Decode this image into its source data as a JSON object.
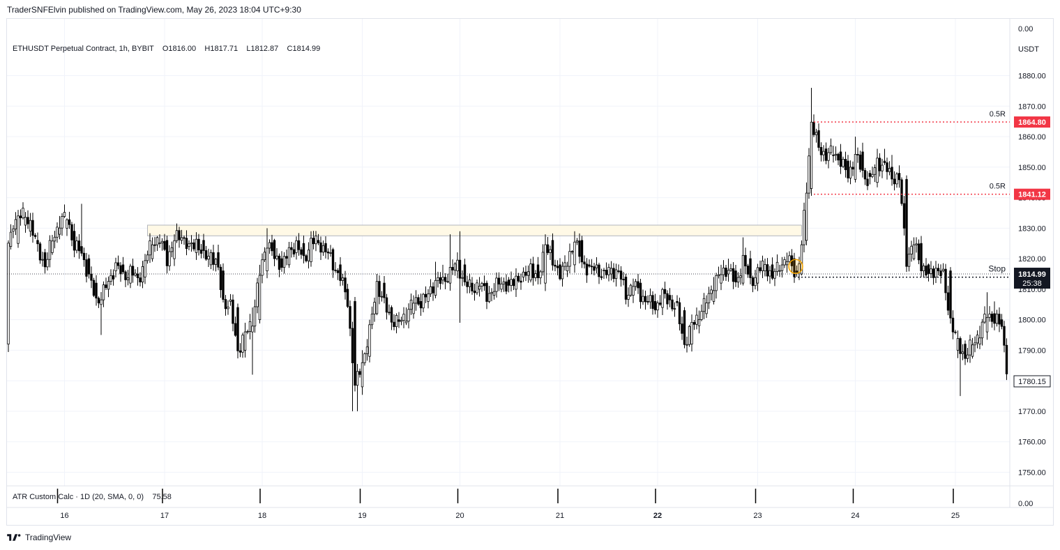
{
  "header": {
    "publish_line": "TraderSNFElvin published on TradingView.com, May 26, 2023 18:04 UTC+9:30"
  },
  "legend": {
    "symbol_line": "ETHUSDT Perpetual Contract, 1h, BYBIT",
    "open": "O1816.00",
    "high": "H1817.71",
    "low": "L1812.87",
    "close": "C1814.99"
  },
  "indicator": {
    "label": "ATR Custom Calc · 1D (20, SMA, 0, 0)",
    "value": "75.58",
    "axis_zero": "0.00",
    "bar_x_indices": [
      20,
      63,
      103,
      144,
      184,
      225,
      265,
      306,
      346,
      387
    ]
  },
  "brand": {
    "name": "TradingView"
  },
  "colors": {
    "up": "#ffffff",
    "down": "#000000",
    "wick": "#000000",
    "target": "#f23645",
    "price_label": "#131722",
    "zone_fill": "#fff9e6",
    "zone_stroke": "#b2b5be",
    "grid": "#f0f3fa",
    "highlight_circle": "#f7a600"
  },
  "chart_data": {
    "type": "candlestick",
    "title": "ETHUSDT Perpetual Contract, 1h, BYBIT",
    "currency": "USDT",
    "ylim": [
      1745,
      1885
    ],
    "y_ticks": [
      1750,
      1760,
      1770,
      1780,
      1790,
      1800,
      1810,
      1820,
      1830,
      1840,
      1850,
      1860,
      1870,
      1880
    ],
    "y_tick_labels": [
      "1750.00",
      "1760.00",
      "1770.00",
      "1780.00",
      "1790.00",
      "1800.00",
      "1810.00",
      "1820.00",
      "1830.00",
      "1840.00",
      "1850.00",
      "1860.00",
      "1870.00",
      "1880.00"
    ],
    "y_axis_top_label": "0.00",
    "x_ticks": [
      {
        "label": "16",
        "index": 23
      },
      {
        "label": "17",
        "index": 64
      },
      {
        "label": "18",
        "index": 104
      },
      {
        "label": "19",
        "index": 145
      },
      {
        "label": "20",
        "index": 185
      },
      {
        "label": "21",
        "index": 226
      },
      {
        "label": "22",
        "index": 266,
        "bold": true
      },
      {
        "label": "23",
        "index": 307
      },
      {
        "label": "24",
        "index": 347
      },
      {
        "label": "25",
        "index": 388
      }
    ],
    "anchors": [
      [
        0,
        1792,
        1824,
        1826
      ],
      [
        1,
        1824,
        1827,
        1826
      ],
      [
        2,
        1829,
        1832,
        1831
      ],
      [
        4,
        1825,
        1834,
        1836
      ],
      [
        7,
        1831,
        1834,
        1832
      ],
      [
        9,
        1829,
        1832,
        1835
      ],
      [
        12,
        1826,
        1823,
        1826
      ],
      [
        15,
        1822,
        1818,
        1820
      ],
      [
        18,
        1822,
        1826,
        1823
      ],
      [
        21,
        1828,
        1832,
        1834
      ],
      [
        24,
        1830,
        1834,
        1832
      ],
      [
        27,
        1829,
        1824,
        1827
      ],
      [
        30,
        1824,
        1822,
        1823
      ],
      [
        33,
        1820,
        1814,
        1816
      ],
      [
        36,
        1812,
        1806,
        1805
      ],
      [
        38,
        1805,
        1808,
        1809
      ],
      [
        41,
        1810,
        1812,
        1812
      ],
      [
        44,
        1816,
        1818,
        1820
      ],
      [
        47,
        1818,
        1814,
        1818
      ],
      [
        50,
        1812,
        1816,
        1818
      ],
      [
        53,
        1815,
        1813,
        1816
      ],
      [
        56,
        1814,
        1819,
        1820
      ],
      [
        59,
        1820,
        1826,
        1827
      ],
      [
        62,
        1825,
        1826,
        1828
      ],
      [
        65,
        1826,
        1820,
        1824
      ],
      [
        68,
        1820,
        1826,
        1828
      ],
      [
        71,
        1826,
        1828,
        1829
      ],
      [
        74,
        1824,
        1823,
        1826
      ],
      [
        77,
        1822,
        1826,
        1827
      ],
      [
        80,
        1826,
        1820,
        1822
      ],
      [
        83,
        1818,
        1822,
        1823
      ],
      [
        86,
        1822,
        1816,
        1818
      ],
      [
        88,
        1816,
        1806,
        1810
      ],
      [
        91,
        1806,
        1804,
        1806
      ],
      [
        94,
        1804,
        1790,
        1796
      ],
      [
        97,
        1790,
        1795,
        1799
      ],
      [
        100,
        1796,
        1800,
        1804
      ],
      [
        103,
        1800,
        1815,
        1818
      ],
      [
        106,
        1816,
        1826,
        1830
      ],
      [
        109,
        1826,
        1820,
        1822
      ],
      [
        112,
        1820,
        1818,
        1820
      ],
      [
        115,
        1818,
        1822,
        1824
      ],
      [
        118,
        1822,
        1825,
        1826
      ],
      [
        121,
        1825,
        1819,
        1822
      ],
      [
        124,
        1819,
        1826,
        1829
      ],
      [
        127,
        1826,
        1825,
        1827
      ],
      [
        130,
        1825,
        1823,
        1826
      ],
      [
        133,
        1823,
        1818,
        1821
      ],
      [
        136,
        1818,
        1814,
        1815
      ],
      [
        139,
        1810,
        1806,
        1808
      ],
      [
        142,
        1806,
        1778,
        1800
      ],
      [
        145,
        1778,
        1786,
        1790
      ],
      [
        148,
        1788,
        1796,
        1800
      ],
      [
        151,
        1802,
        1812,
        1815
      ],
      [
        154,
        1812,
        1805,
        1808
      ],
      [
        157,
        1804,
        1800,
        1802
      ],
      [
        160,
        1800,
        1799,
        1802
      ],
      [
        163,
        1799,
        1802,
        1804
      ],
      [
        166,
        1802,
        1806,
        1808
      ],
      [
        169,
        1806,
        1806,
        1808
      ],
      [
        172,
        1806,
        1808,
        1810
      ],
      [
        175,
        1808,
        1813,
        1819
      ],
      [
        178,
        1813,
        1812,
        1818
      ],
      [
        181,
        1812,
        1816,
        1828
      ],
      [
        184,
        1816,
        1818,
        1822
      ],
      [
        187,
        1818,
        1812,
        1820
      ],
      [
        190,
        1812,
        1810,
        1814
      ],
      [
        193,
        1810,
        1812,
        1814
      ],
      [
        196,
        1812,
        1808,
        1812
      ],
      [
        199,
        1808,
        1810,
        1812
      ],
      [
        202,
        1810,
        1813,
        1814
      ],
      [
        205,
        1813,
        1810,
        1814
      ],
      [
        208,
        1810,
        1814,
        1816
      ],
      [
        211,
        1814,
        1813,
        1816
      ],
      [
        214,
        1813,
        1818,
        1820
      ],
      [
        217,
        1818,
        1812,
        1816
      ],
      [
        220,
        1812,
        1826,
        1828
      ],
      [
        223,
        1826,
        1818,
        1822
      ],
      [
        226,
        1818,
        1816,
        1820
      ],
      [
        229,
        1816,
        1818,
        1819
      ],
      [
        232,
        1818,
        1827,
        1829
      ],
      [
        235,
        1826,
        1818,
        1820
      ],
      [
        238,
        1818,
        1817,
        1819
      ],
      [
        241,
        1817,
        1816,
        1818
      ],
      [
        244,
        1816,
        1815,
        1817
      ],
      [
        247,
        1815,
        1816,
        1817
      ],
      [
        250,
        1816,
        1816,
        1818
      ],
      [
        253,
        1814,
        1808,
        1810
      ],
      [
        256,
        1808,
        1812,
        1812
      ],
      [
        259,
        1812,
        1808,
        1810
      ],
      [
        262,
        1806,
        1806,
        1808
      ],
      [
        265,
        1806,
        1804,
        1808
      ],
      [
        268,
        1804,
        1808,
        1810
      ],
      [
        271,
        1808,
        1806,
        1808
      ],
      [
        274,
        1806,
        1803,
        1806
      ],
      [
        277,
        1803,
        1792,
        1800
      ],
      [
        280,
        1792,
        1798,
        1801
      ],
      [
        283,
        1798,
        1802,
        1803
      ],
      [
        286,
        1802,
        1806,
        1808
      ],
      [
        289,
        1806,
        1812,
        1814
      ],
      [
        292,
        1812,
        1815,
        1818
      ],
      [
        295,
        1815,
        1817,
        1820
      ],
      [
        298,
        1816,
        1811,
        1816
      ],
      [
        301,
        1812,
        1820,
        1827
      ],
      [
        304,
        1820,
        1812,
        1818
      ],
      [
        307,
        1812,
        1816,
        1818
      ],
      [
        310,
        1816,
        1818,
        1819
      ],
      [
        313,
        1818,
        1814,
        1818
      ],
      [
        316,
        1816,
        1818,
        1818
      ],
      [
        319,
        1818,
        1820,
        1822
      ],
      [
        322,
        1820,
        1816,
        1820
      ],
      [
        323,
        1816,
        1815,
        1817
      ],
      [
        325,
        1815,
        1824,
        1826
      ],
      [
        327,
        1826,
        1843,
        1845
      ],
      [
        329,
        1843,
        1865,
        1876
      ],
      [
        332,
        1862,
        1856,
        1862
      ],
      [
        335,
        1856,
        1854,
        1856
      ],
      [
        338,
        1854,
        1855,
        1857
      ],
      [
        341,
        1855,
        1852,
        1856
      ],
      [
        344,
        1852,
        1847,
        1854
      ],
      [
        347,
        1846,
        1854,
        1860
      ],
      [
        350,
        1855,
        1848,
        1858
      ],
      [
        353,
        1848,
        1845,
        1849
      ],
      [
        356,
        1845,
        1852,
        1856
      ],
      [
        359,
        1852,
        1850,
        1856
      ],
      [
        362,
        1850,
        1847,
        1854
      ],
      [
        365,
        1848,
        1846,
        1849
      ],
      [
        368,
        1846,
        1820,
        1846
      ],
      [
        371,
        1820,
        1825,
        1827
      ],
      [
        374,
        1825,
        1818,
        1820
      ],
      [
        377,
        1818,
        1814,
        1818
      ],
      [
        380,
        1814,
        1817,
        1818
      ],
      [
        383,
        1816,
        1814,
        1818
      ],
      [
        386,
        1816,
        1800,
        1816
      ],
      [
        389,
        1790,
        1792,
        1794
      ],
      [
        392,
        1792,
        1788,
        1792
      ],
      [
        395,
        1788,
        1792,
        1794
      ],
      [
        398,
        1792,
        1796,
        1798
      ],
      [
        401,
        1796,
        1802,
        1809
      ],
      [
        404,
        1802,
        1800,
        1806
      ],
      [
        407,
        1800,
        1798,
        1800
      ],
      [
        410,
        1798,
        1778,
        1799
      ],
      [
        412,
        1778,
        1780,
        1782
      ],
      [
        413,
        1780,
        1781,
        1783
      ]
    ],
    "zones": [
      {
        "type": "resistance-zone",
        "x_from": 57,
        "x_to": 325,
        "y_from": 1827.5,
        "y_to": 1831
      }
    ],
    "levels": [
      {
        "name": "0.5R",
        "price": 1864.8,
        "label": "1864.80",
        "x_from": 330
      },
      {
        "name": "0.5R",
        "price": 1841.12,
        "label": "1841.12",
        "x_from": 330
      },
      {
        "name": "Stop",
        "price": 1813.95,
        "label": "1813.95",
        "x_from": 322
      }
    ],
    "last_price": {
      "value": "1814.99",
      "countdown": "25:38"
    },
    "current_price_label": "1780.15",
    "open_line": 1814.99,
    "highlight_circle": {
      "index": 322,
      "price": 1817
    }
  }
}
